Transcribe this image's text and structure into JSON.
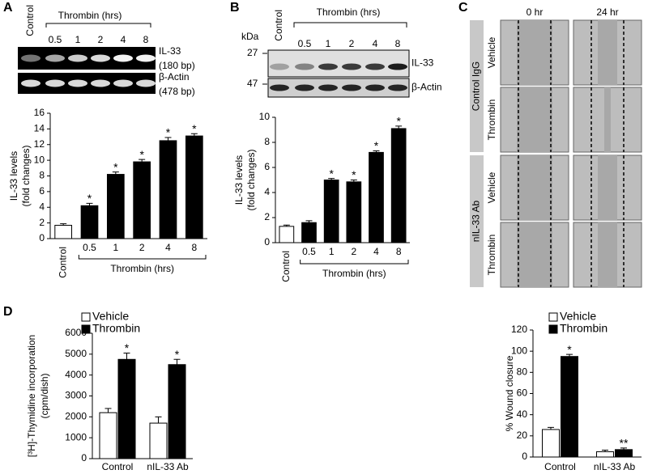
{
  "panel_labels": [
    "A",
    "B",
    "C",
    "D"
  ],
  "blot_a": {
    "header": "Thrombin (hrs)",
    "columns": [
      "Control",
      "0.5",
      "1",
      "2",
      "4",
      "8"
    ],
    "rows": [
      {
        "label": "IL-33",
        "sub": "(180 bp)"
      },
      {
        "label": "β-Actin",
        "sub": "(478 bp)"
      }
    ]
  },
  "blot_b": {
    "unit": "kDa",
    "markers": [
      "27",
      "47"
    ],
    "header": "Thrombin (hrs)",
    "columns": [
      "Control",
      "0.5",
      "1",
      "2",
      "4",
      "8"
    ],
    "rows": [
      "IL-33",
      "β-Actin"
    ]
  },
  "panel_c": {
    "columns": [
      "0 hr",
      "24 hr"
    ],
    "groups": [
      {
        "label": "Control IgG",
        "rows": [
          "Vehicle",
          "Thrombin"
        ]
      },
      {
        "label": "nIL-33 Ab",
        "rows": [
          "Vehicle",
          "Thrombin"
        ]
      }
    ]
  },
  "chart_data": [
    {
      "type": "bar",
      "y_label": [
        "IL-33 levels",
        "(fold changes)"
      ],
      "x_group_label": "Thrombin (hrs)",
      "categories": [
        "Control",
        "0.5",
        "1",
        "2",
        "4",
        "8"
      ],
      "values": [
        1.7,
        4.2,
        8.2,
        9.8,
        12.5,
        13.1
      ],
      "errors": [
        0.2,
        0.3,
        0.3,
        0.3,
        0.4,
        0.3
      ],
      "colors": [
        "#ffffff",
        "#000000",
        "#000000",
        "#000000",
        "#000000",
        "#000000"
      ],
      "significance": [
        null,
        "*",
        "*",
        "*",
        "*",
        "*"
      ],
      "ylim": [
        0,
        16
      ],
      "yticks": [
        0,
        2,
        4,
        6,
        8,
        10,
        12,
        14,
        16
      ]
    },
    {
      "type": "bar",
      "y_label": [
        "IL-33 levels",
        "(fold changes)"
      ],
      "x_group_label": "Thrombin (hrs)",
      "categories": [
        "Control",
        "0.5",
        "1",
        "2",
        "4",
        "8"
      ],
      "values": [
        1.3,
        1.6,
        5.0,
        4.85,
        7.2,
        9.1
      ],
      "errors": [
        0.1,
        0.15,
        0.12,
        0.15,
        0.12,
        0.2
      ],
      "colors": [
        "#ffffff",
        "#000000",
        "#000000",
        "#000000",
        "#000000",
        "#000000"
      ],
      "significance": [
        null,
        null,
        "*",
        "*",
        "*",
        "*"
      ],
      "ylim": [
        0,
        10
      ],
      "yticks": [
        0,
        2,
        4,
        6,
        8,
        10
      ]
    },
    {
      "type": "grouped_bar",
      "y_label": [
        "[³H]-Thymidine incorporation",
        "(cpm/dish)"
      ],
      "categories": [
        "Control",
        "nIL-33 Ab"
      ],
      "series": [
        {
          "name": "Vehicle",
          "color": "#ffffff",
          "values": [
            2200,
            1700
          ],
          "errors": [
            200,
            300
          ],
          "significance": [
            null,
            null
          ]
        },
        {
          "name": "Thrombin",
          "color": "#000000",
          "values": [
            4750,
            4500
          ],
          "errors": [
            300,
            250
          ],
          "significance": [
            "*",
            "*"
          ]
        }
      ],
      "ylim": [
        0,
        6000
      ],
      "yticks": [
        0,
        1000,
        2000,
        3000,
        4000,
        5000,
        6000
      ]
    },
    {
      "type": "grouped_bar",
      "y_label": [
        "% Wound closure"
      ],
      "categories": [
        "Control",
        "nIL-33 Ab"
      ],
      "series": [
        {
          "name": "Vehicle",
          "color": "#ffffff",
          "values": [
            26,
            5
          ],
          "errors": [
            2,
            1.5
          ],
          "significance": [
            null,
            null
          ]
        },
        {
          "name": "Thrombin",
          "color": "#000000",
          "values": [
            95,
            7
          ],
          "errors": [
            2,
            1.5
          ],
          "significance": [
            "*",
            "**"
          ]
        }
      ],
      "ylim": [
        0,
        120
      ],
      "yticks": [
        0,
        20,
        40,
        60,
        80,
        100,
        120
      ]
    }
  ]
}
